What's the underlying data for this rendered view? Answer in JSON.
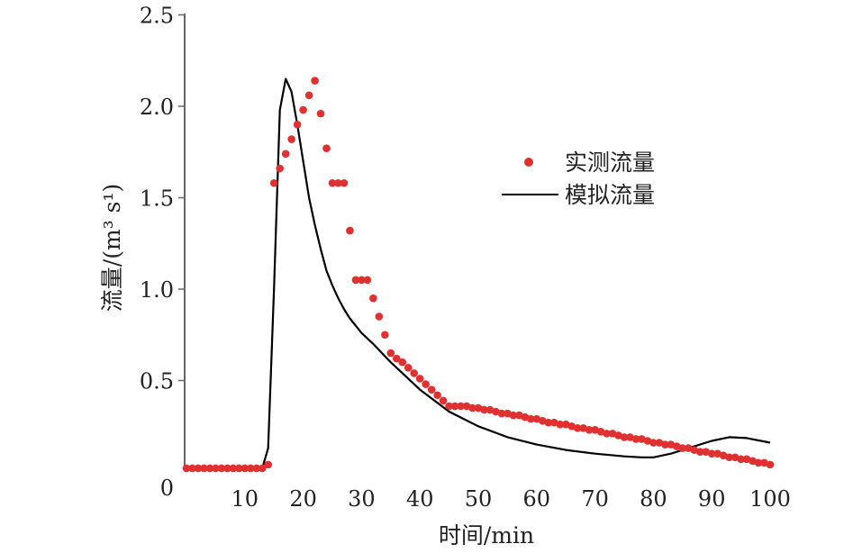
{
  "chart_data": {
    "type": "scatter+line",
    "xlabel": "时间/min",
    "ylabel": "流量/(m³ s¹)",
    "xlim": [
      0,
      100
    ],
    "ylim": [
      0,
      2.5
    ],
    "xticks": [
      "10",
      "20",
      "30",
      "40",
      "50",
      "60",
      "70",
      "80",
      "90",
      "100"
    ],
    "xtick_values": [
      10,
      20,
      30,
      40,
      50,
      60,
      70,
      80,
      90,
      100
    ],
    "yticks": [
      "0",
      "0.5",
      "1.0",
      "1.5",
      "2.0",
      "2.5"
    ],
    "ytick_values": [
      0,
      0.5,
      1.0,
      1.5,
      2.0,
      2.5
    ],
    "legend_position": "upper-right",
    "colors": {
      "observed": "#e03030",
      "simulated": "#000000",
      "axis": "#666666"
    },
    "series": [
      {
        "name": "实测流量",
        "kind": "scatter",
        "x": [
          0,
          1,
          2,
          3,
          4,
          5,
          6,
          7,
          8,
          9,
          10,
          11,
          12,
          13,
          14,
          15,
          16,
          17,
          18,
          19,
          20,
          21,
          22,
          23,
          24,
          25,
          26,
          27,
          28,
          29,
          30,
          31,
          32,
          33,
          34,
          35,
          36,
          37,
          38,
          39,
          40,
          41,
          42,
          43,
          44,
          45,
          46,
          47,
          48,
          49,
          50,
          51,
          52,
          53,
          54,
          55,
          56,
          57,
          58,
          59,
          60,
          61,
          62,
          63,
          64,
          65,
          66,
          67,
          68,
          69,
          70,
          71,
          72,
          73,
          74,
          75,
          76,
          77,
          78,
          79,
          80,
          81,
          82,
          83,
          84,
          85,
          86,
          87,
          88,
          89,
          90,
          91,
          92,
          93,
          94,
          95,
          96,
          97,
          98,
          99,
          100
        ],
        "values": [
          0.02,
          0.02,
          0.02,
          0.02,
          0.02,
          0.02,
          0.02,
          0.02,
          0.02,
          0.02,
          0.02,
          0.02,
          0.02,
          0.02,
          0.04,
          1.58,
          1.66,
          1.74,
          1.82,
          1.9,
          1.98,
          2.06,
          2.14,
          1.96,
          1.77,
          1.58,
          1.58,
          1.58,
          1.32,
          1.05,
          1.05,
          1.05,
          0.95,
          0.85,
          0.75,
          0.65,
          0.62,
          0.6,
          0.57,
          0.54,
          0.51,
          0.48,
          0.45,
          0.42,
          0.39,
          0.36,
          0.36,
          0.36,
          0.36,
          0.35,
          0.35,
          0.34,
          0.34,
          0.33,
          0.32,
          0.32,
          0.31,
          0.31,
          0.3,
          0.29,
          0.29,
          0.28,
          0.27,
          0.27,
          0.26,
          0.26,
          0.25,
          0.24,
          0.24,
          0.23,
          0.23,
          0.22,
          0.21,
          0.21,
          0.2,
          0.19,
          0.19,
          0.18,
          0.18,
          0.17,
          0.16,
          0.16,
          0.15,
          0.15,
          0.14,
          0.13,
          0.13,
          0.12,
          0.11,
          0.11,
          0.1,
          0.1,
          0.09,
          0.08,
          0.08,
          0.07,
          0.07,
          0.06,
          0.05,
          0.05,
          0.04
        ]
      },
      {
        "name": "模拟流量",
        "kind": "line",
        "x": [
          0,
          13,
          14,
          15,
          16,
          17,
          18,
          19,
          20,
          21,
          22,
          23,
          24,
          25,
          26,
          27,
          28,
          29,
          30,
          32,
          35,
          40,
          45,
          50,
          55,
          60,
          65,
          70,
          75,
          78,
          80,
          83,
          86,
          90,
          93,
          96,
          100
        ],
        "values": [
          0.02,
          0.02,
          0.13,
          1.0,
          1.98,
          2.15,
          2.08,
          1.9,
          1.7,
          1.5,
          1.35,
          1.22,
          1.1,
          1.02,
          0.95,
          0.89,
          0.84,
          0.8,
          0.76,
          0.7,
          0.6,
          0.45,
          0.33,
          0.25,
          0.19,
          0.15,
          0.12,
          0.1,
          0.085,
          0.08,
          0.08,
          0.1,
          0.13,
          0.17,
          0.19,
          0.185,
          0.16
        ]
      }
    ]
  }
}
